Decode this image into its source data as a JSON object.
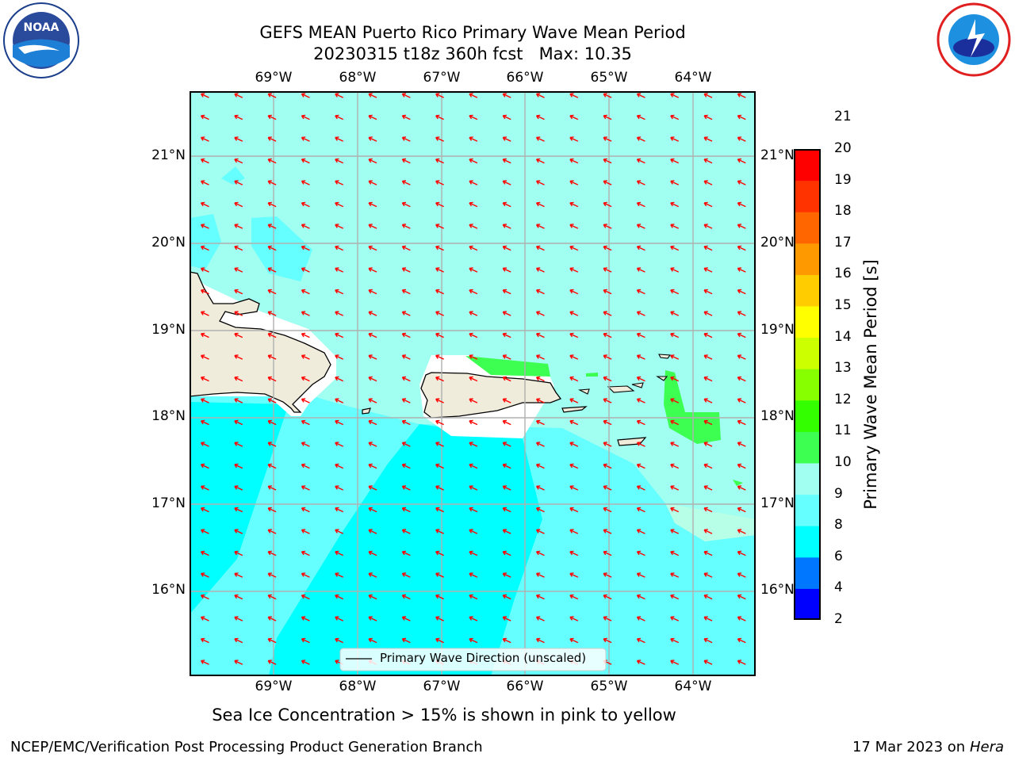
{
  "header": {
    "title_line1": "GEFS MEAN Puerto Rico Primary Wave Mean Period",
    "title_line2": "20230315 t18z 360h fcst   Max: 10.35"
  },
  "logos": {
    "left": {
      "name": "noaa-logo",
      "text": "NOAA"
    },
    "right": {
      "name": "nws-logo"
    }
  },
  "map": {
    "lon_ticks": [
      "69°W",
      "68°W",
      "67°W",
      "66°W",
      "65°W",
      "64°W"
    ],
    "lat_ticks": [
      "21°N",
      "20°N",
      "19°N",
      "18°N",
      "17°N",
      "16°N"
    ],
    "legend_label": "Primary Wave Direction (unscaled)",
    "arrow_color": "#ff0000",
    "land_color": "#efecdc"
  },
  "colorbar": {
    "title": "Primary Wave Mean Period [s]",
    "levels": [
      "2",
      "4",
      "6",
      "8",
      "9",
      "10",
      "11",
      "12",
      "13",
      "14",
      "15",
      "16",
      "17",
      "18",
      "19",
      "20",
      "21"
    ],
    "colors": [
      "#0000ff",
      "#0077ff",
      "#00ffff",
      "#66ffff",
      "#a0fff0",
      "#3dff52",
      "#33ff00",
      "#88ff00",
      "#ccff00",
      "#ffff00",
      "#ffcc00",
      "#ff9900",
      "#ff6600",
      "#ff3300",
      "#ff0000"
    ]
  },
  "subtitle": "Sea Ice Concentration > 15% is shown in pink to yellow",
  "footer": {
    "left": "NCEP/EMC/Verification Post Processing Product Generation Branch",
    "date": "17 Mar 2023 on",
    "host": "Hera"
  }
}
